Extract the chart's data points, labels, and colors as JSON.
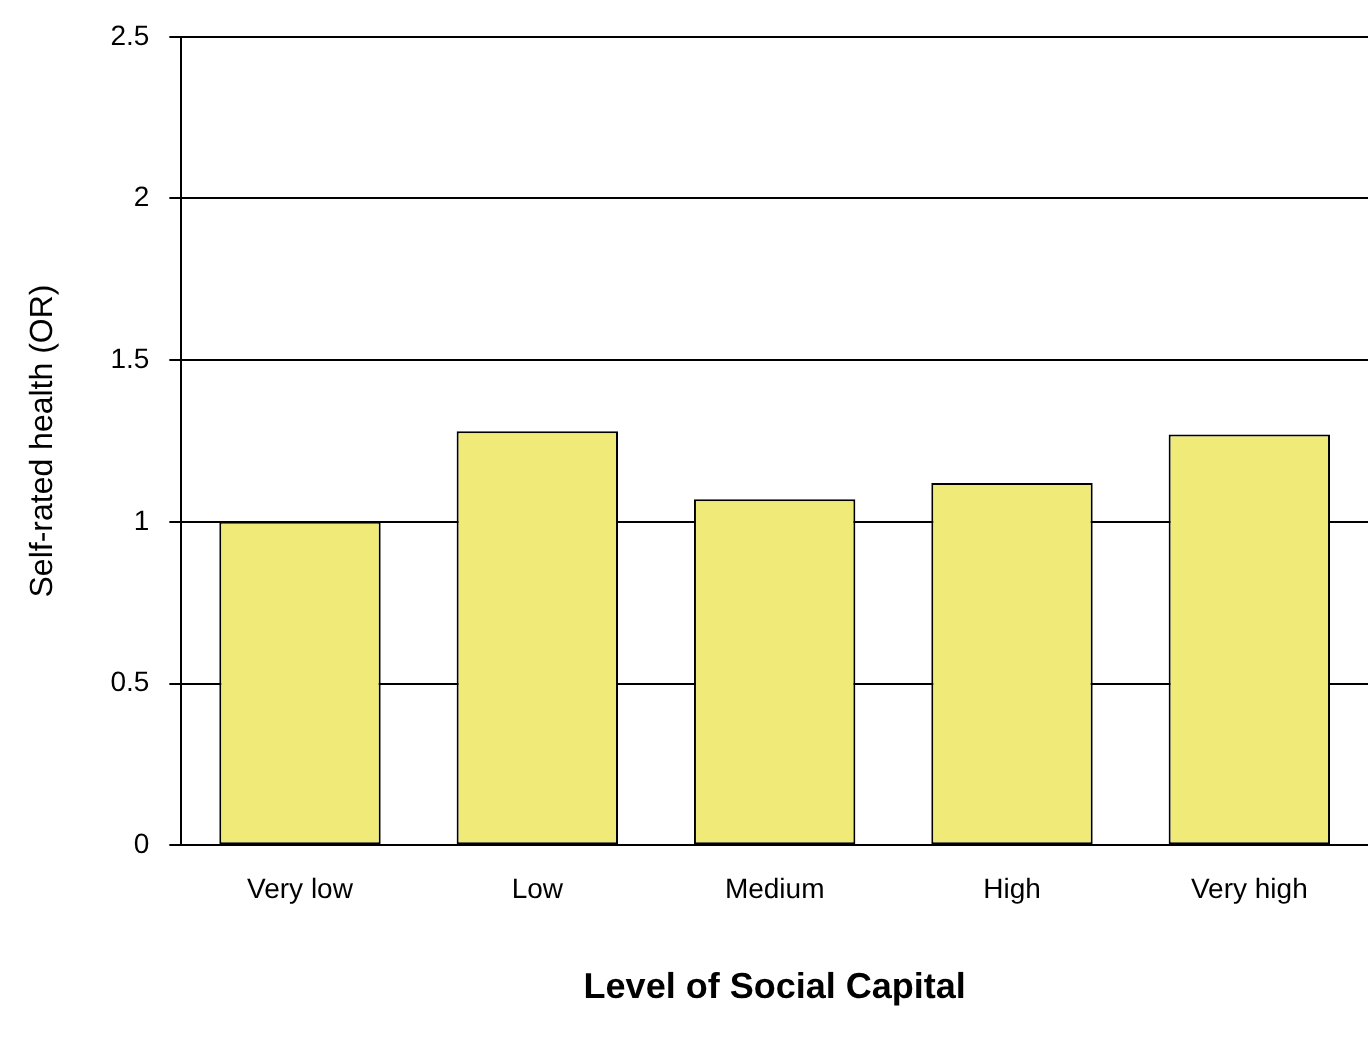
{
  "chart_data": {
    "type": "bar",
    "xlabel": "Level of Social Capital",
    "ylabel": "Self-rated health (OR)",
    "categories": [
      "Very low",
      "Low",
      "Medium",
      "High",
      "Very high"
    ],
    "values": [
      1.0,
      1.28,
      1.07,
      1.12,
      1.27
    ],
    "color": "#f0eb78",
    "ylim": [
      0,
      2.5
    ],
    "yticks": [
      0,
      0.5,
      1,
      1.5,
      2,
      2.5
    ],
    "grid": "y"
  }
}
